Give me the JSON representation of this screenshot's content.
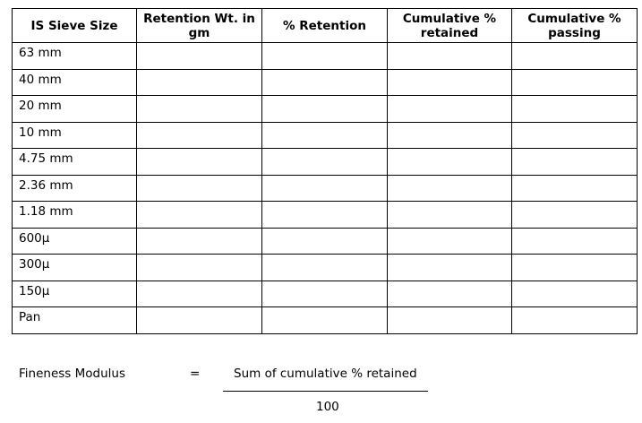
{
  "table": {
    "headers": [
      "IS Sieve Size",
      "Retention Wt. in gm",
      "% Retention",
      "Cumulative % retained",
      "Cumulative % passing"
    ],
    "rows": [
      "63 mm",
      "40 mm",
      "20 mm",
      "10 mm",
      "4.75 mm",
      "2.36 mm",
      "1.18 mm",
      "600µ",
      "300µ",
      "150µ",
      "Pan"
    ]
  },
  "formula": {
    "label": "Fineness Modulus",
    "equals": "=",
    "numerator": "Sum of cumulative % retained",
    "denominator": "100"
  }
}
